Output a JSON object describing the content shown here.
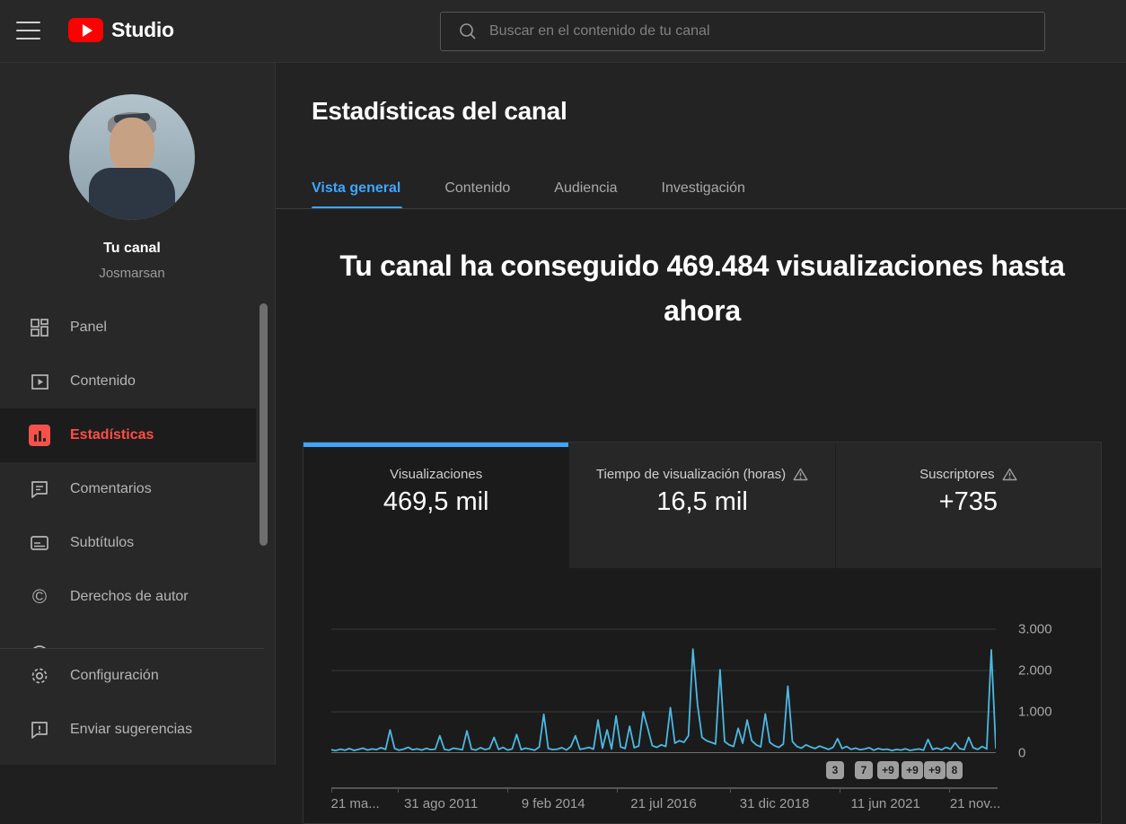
{
  "topbar": {
    "logo_text": "Studio",
    "search_placeholder": "Buscar en el contenido de tu canal"
  },
  "sidebar": {
    "channel": {
      "title": "Tu canal",
      "handle": "Josmarsan"
    },
    "items": [
      {
        "label": "Panel",
        "icon": "dashboard-icon",
        "selected": false
      },
      {
        "label": "Contenido",
        "icon": "content-icon",
        "selected": false
      },
      {
        "label": "Estadísticas",
        "icon": "analytics-icon",
        "selected": true
      },
      {
        "label": "Comentarios",
        "icon": "comments-icon",
        "selected": false
      },
      {
        "label": "Subtítulos",
        "icon": "subtitles-icon",
        "selected": false
      },
      {
        "label": "Derechos de autor",
        "icon": "copyright-icon",
        "selected": false
      }
    ],
    "copyright_glyph": "©",
    "bottom_items": [
      {
        "label": "Configuración",
        "icon": "gear-icon"
      },
      {
        "label": "Enviar sugerencias",
        "icon": "feedback-icon"
      }
    ]
  },
  "main": {
    "page_title": "Estadísticas del canal",
    "tabs": [
      {
        "label": "Vista general",
        "active": true
      },
      {
        "label": "Contenido",
        "active": false
      },
      {
        "label": "Audiencia",
        "active": false
      },
      {
        "label": "Investigación",
        "active": false
      }
    ],
    "headline": "Tu canal ha conseguido 469.484 visualizaciones hasta ahora",
    "metrics": [
      {
        "label": "Visualizaciones",
        "value": "469,5 mil",
        "active": true,
        "warning": false
      },
      {
        "label": "Tiempo de visualización (horas)",
        "value": "16,5 mil",
        "active": false,
        "warning": true
      },
      {
        "label": "Suscriptores",
        "value": "+735",
        "active": false,
        "warning": true
      }
    ]
  },
  "chart_data": {
    "type": "line",
    "x_tick_labels": [
      "21 ma...",
      "31 ago 2011",
      "9 feb 2014",
      "21 jul 2016",
      "31 dic 2018",
      "11 jun 2021",
      "21 nov..."
    ],
    "y_tick_labels": [
      "3.000",
      "2.000",
      "1.000",
      "0"
    ],
    "y_ticks": [
      3000,
      2000,
      1000,
      0
    ],
    "ylim": [
      0,
      3200
    ],
    "grid": true,
    "legend": "none",
    "line_color": "#4db8e2",
    "upload_badges": [
      "3",
      "7",
      "+9",
      "+9",
      "+9",
      "8"
    ],
    "series": [
      {
        "name": "Visualizaciones",
        "values": [
          80,
          60,
          95,
          70,
          110,
          65,
          90,
          120,
          75,
          100,
          85,
          130,
          90,
          560,
          110,
          70,
          95,
          140,
          80,
          105,
          75,
          115,
          85,
          95,
          420,
          90,
          70,
          120,
          100,
          80,
          540,
          95,
          75,
          130,
          85,
          110,
          380,
          90,
          140,
          75,
          100,
          450,
          85,
          120,
          95,
          70,
          150,
          940,
          110,
          85,
          95,
          130,
          75,
          160,
          420,
          90,
          110,
          140,
          95,
          800,
          120,
          560,
          100,
          900,
          150,
          110,
          650,
          130,
          170,
          1000,
          600,
          180,
          140,
          200,
          160,
          1100,
          240,
          300,
          260,
          420,
          2520,
          1180,
          380,
          300,
          260,
          220,
          2020,
          280,
          200,
          160,
          600,
          240,
          800,
          300,
          200,
          150,
          950,
          260,
          180,
          140,
          220,
          1620,
          280,
          160,
          120,
          200,
          150,
          110,
          170,
          130,
          90,
          140,
          350,
          110,
          160,
          90,
          120,
          80,
          100,
          130,
          70,
          110,
          85,
          95,
          60,
          90,
          75,
          105,
          65,
          85,
          100,
          70,
          330,
          90,
          120,
          80,
          140,
          95,
          250,
          110,
          85,
          380,
          130,
          90,
          160,
          100,
          2500,
          120
        ]
      }
    ]
  },
  "colors": {
    "accent_blue": "#3ea6ff",
    "brand_red": "#ff0000",
    "selected_red": "#ff4e45",
    "line_blue": "#4db8e2"
  }
}
